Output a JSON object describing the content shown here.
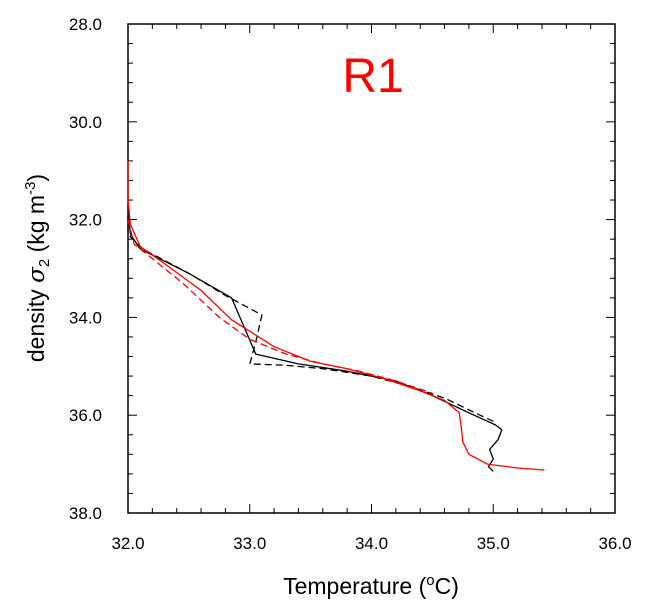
{
  "chart_data": {
    "type": "line",
    "title": "",
    "panel_label": "R1",
    "panel_label_color": "#ff0000",
    "xlabel": {
      "text": "Temperature (",
      "sup": "o",
      "tail": "C)"
    },
    "ylabel": {
      "text": "density ",
      "sym": "σ",
      "sub": "2",
      "units": " (kg m",
      "sup": "-3",
      "tail": ")"
    },
    "xlim": [
      32.0,
      36.0
    ],
    "ylim": [
      38.0,
      28.0
    ],
    "y_inverted": true,
    "x_ticks": [
      "32.0",
      "33.0",
      "34.0",
      "35.0",
      "36.0"
    ],
    "y_ticks": [
      "28.0",
      "30.0",
      "32.0",
      "34.0",
      "36.0",
      "38.0"
    ],
    "grid": false,
    "legend": "none",
    "series": [
      {
        "color": "#000000",
        "style": "solid",
        "points": [
          [
            32.0,
            31.8
          ],
          [
            32.02,
            32.3
          ],
          [
            32.1,
            32.6
          ],
          [
            32.5,
            33.1
          ],
          [
            32.85,
            33.6
          ],
          [
            33.05,
            34.75
          ],
          [
            33.4,
            34.95
          ],
          [
            33.8,
            35.1
          ],
          [
            34.2,
            35.3
          ],
          [
            34.5,
            35.6
          ],
          [
            34.8,
            35.95
          ],
          [
            35.02,
            36.2
          ],
          [
            35.07,
            36.3
          ],
          [
            35.04,
            36.5
          ],
          [
            34.97,
            36.7
          ],
          [
            35.0,
            36.9
          ],
          [
            34.96,
            37.05
          ],
          [
            35.0,
            37.15
          ]
        ]
      },
      {
        "color": "#000000",
        "style": "dashed",
        "points": [
          [
            32.0,
            31.9
          ],
          [
            32.0,
            32.3
          ],
          [
            32.12,
            32.6
          ],
          [
            32.5,
            33.1
          ],
          [
            32.8,
            33.55
          ],
          [
            33.1,
            33.95
          ],
          [
            33.05,
            34.5
          ],
          [
            33.0,
            34.95
          ],
          [
            33.3,
            34.98
          ],
          [
            33.6,
            35.05
          ],
          [
            34.0,
            35.2
          ],
          [
            34.3,
            35.4
          ],
          [
            34.6,
            35.65
          ],
          [
            34.85,
            35.95
          ],
          [
            35.02,
            36.15
          ]
        ]
      },
      {
        "color": "#ff0000",
        "style": "solid",
        "points": [
          [
            32.0,
            30.8
          ],
          [
            32.0,
            31.6
          ],
          [
            32.02,
            32.1
          ],
          [
            32.1,
            32.55
          ],
          [
            32.3,
            32.9
          ],
          [
            32.6,
            33.45
          ],
          [
            32.85,
            34.05
          ],
          [
            33.2,
            34.6
          ],
          [
            33.5,
            34.9
          ],
          [
            33.8,
            35.05
          ],
          [
            34.1,
            35.25
          ],
          [
            34.4,
            35.5
          ],
          [
            34.6,
            35.7
          ],
          [
            34.72,
            35.95
          ],
          [
            34.74,
            36.3
          ],
          [
            34.75,
            36.55
          ],
          [
            34.8,
            36.8
          ],
          [
            34.95,
            37.0
          ],
          [
            35.2,
            37.08
          ],
          [
            35.42,
            37.12
          ]
        ]
      },
      {
        "color": "#ff0000",
        "style": "dashed",
        "points": [
          [
            32.0,
            32.0
          ],
          [
            32.05,
            32.5
          ],
          [
            32.2,
            32.8
          ],
          [
            32.45,
            33.3
          ],
          [
            32.75,
            34.0
          ],
          [
            33.0,
            34.45
          ],
          [
            33.3,
            34.75
          ],
          [
            33.6,
            34.95
          ],
          [
            33.9,
            35.1
          ],
          [
            34.2,
            35.3
          ],
          [
            34.5,
            35.55
          ]
        ]
      }
    ]
  }
}
